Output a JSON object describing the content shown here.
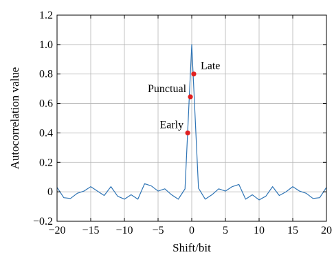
{
  "chart_data": {
    "type": "line",
    "xlabel": "Shift/bit",
    "ylabel": "Autocorrelation value",
    "xlim": [
      -20,
      20
    ],
    "ylim": [
      -0.2,
      1.2
    ],
    "xticks": [
      -20,
      -15,
      -10,
      -5,
      0,
      5,
      10,
      15,
      20
    ],
    "xtick_labels": [
      "−20",
      "−15",
      "−10",
      "−5",
      "0",
      "5",
      "10",
      "15",
      "20"
    ],
    "yticks": [
      -0.2,
      0,
      0.2,
      0.4,
      0.6,
      0.8,
      1.0,
      1.2
    ],
    "ytick_labels": [
      "−0.2",
      "0",
      "0.2",
      "0.4",
      "0.6",
      "0.8",
      "1.0",
      "1.2"
    ],
    "grid": true,
    "series": [
      {
        "color": "#2e74b5",
        "x": [
          -20,
          -19,
          -18,
          -17,
          -16,
          -15,
          -14,
          -13,
          -12,
          -11,
          -10,
          -9,
          -8,
          -7,
          -6,
          -5,
          -4,
          -3,
          -2,
          -1,
          0,
          1,
          2,
          3,
          4,
          5,
          6,
          7,
          8,
          9,
          10,
          11,
          12,
          13,
          14,
          15,
          16,
          17,
          18,
          19,
          20
        ],
        "y": [
          0.03,
          -0.04,
          -0.045,
          -0.01,
          0.005,
          0.035,
          0.005,
          -0.025,
          0.035,
          -0.03,
          -0.05,
          -0.02,
          -0.05,
          0.055,
          0.04,
          0.005,
          0.02,
          -0.02,
          -0.05,
          0.02,
          1.0,
          0.025,
          -0.05,
          -0.02,
          0.02,
          0.005,
          0.035,
          0.05,
          -0.05,
          -0.02,
          -0.055,
          -0.03,
          0.035,
          -0.025,
          0.0,
          0.035,
          0.005,
          -0.01,
          -0.045,
          -0.04,
          0.03
        ]
      }
    ],
    "annotations": [
      {
        "label": "Late",
        "x": 0.3,
        "y": 0.8,
        "color": "#e02020"
      },
      {
        "label": "Punctual",
        "x": -0.2,
        "y": 0.645,
        "color": "#e02020"
      },
      {
        "label": "Early",
        "x": -0.6,
        "y": 0.4,
        "color": "#e02020"
      }
    ]
  }
}
